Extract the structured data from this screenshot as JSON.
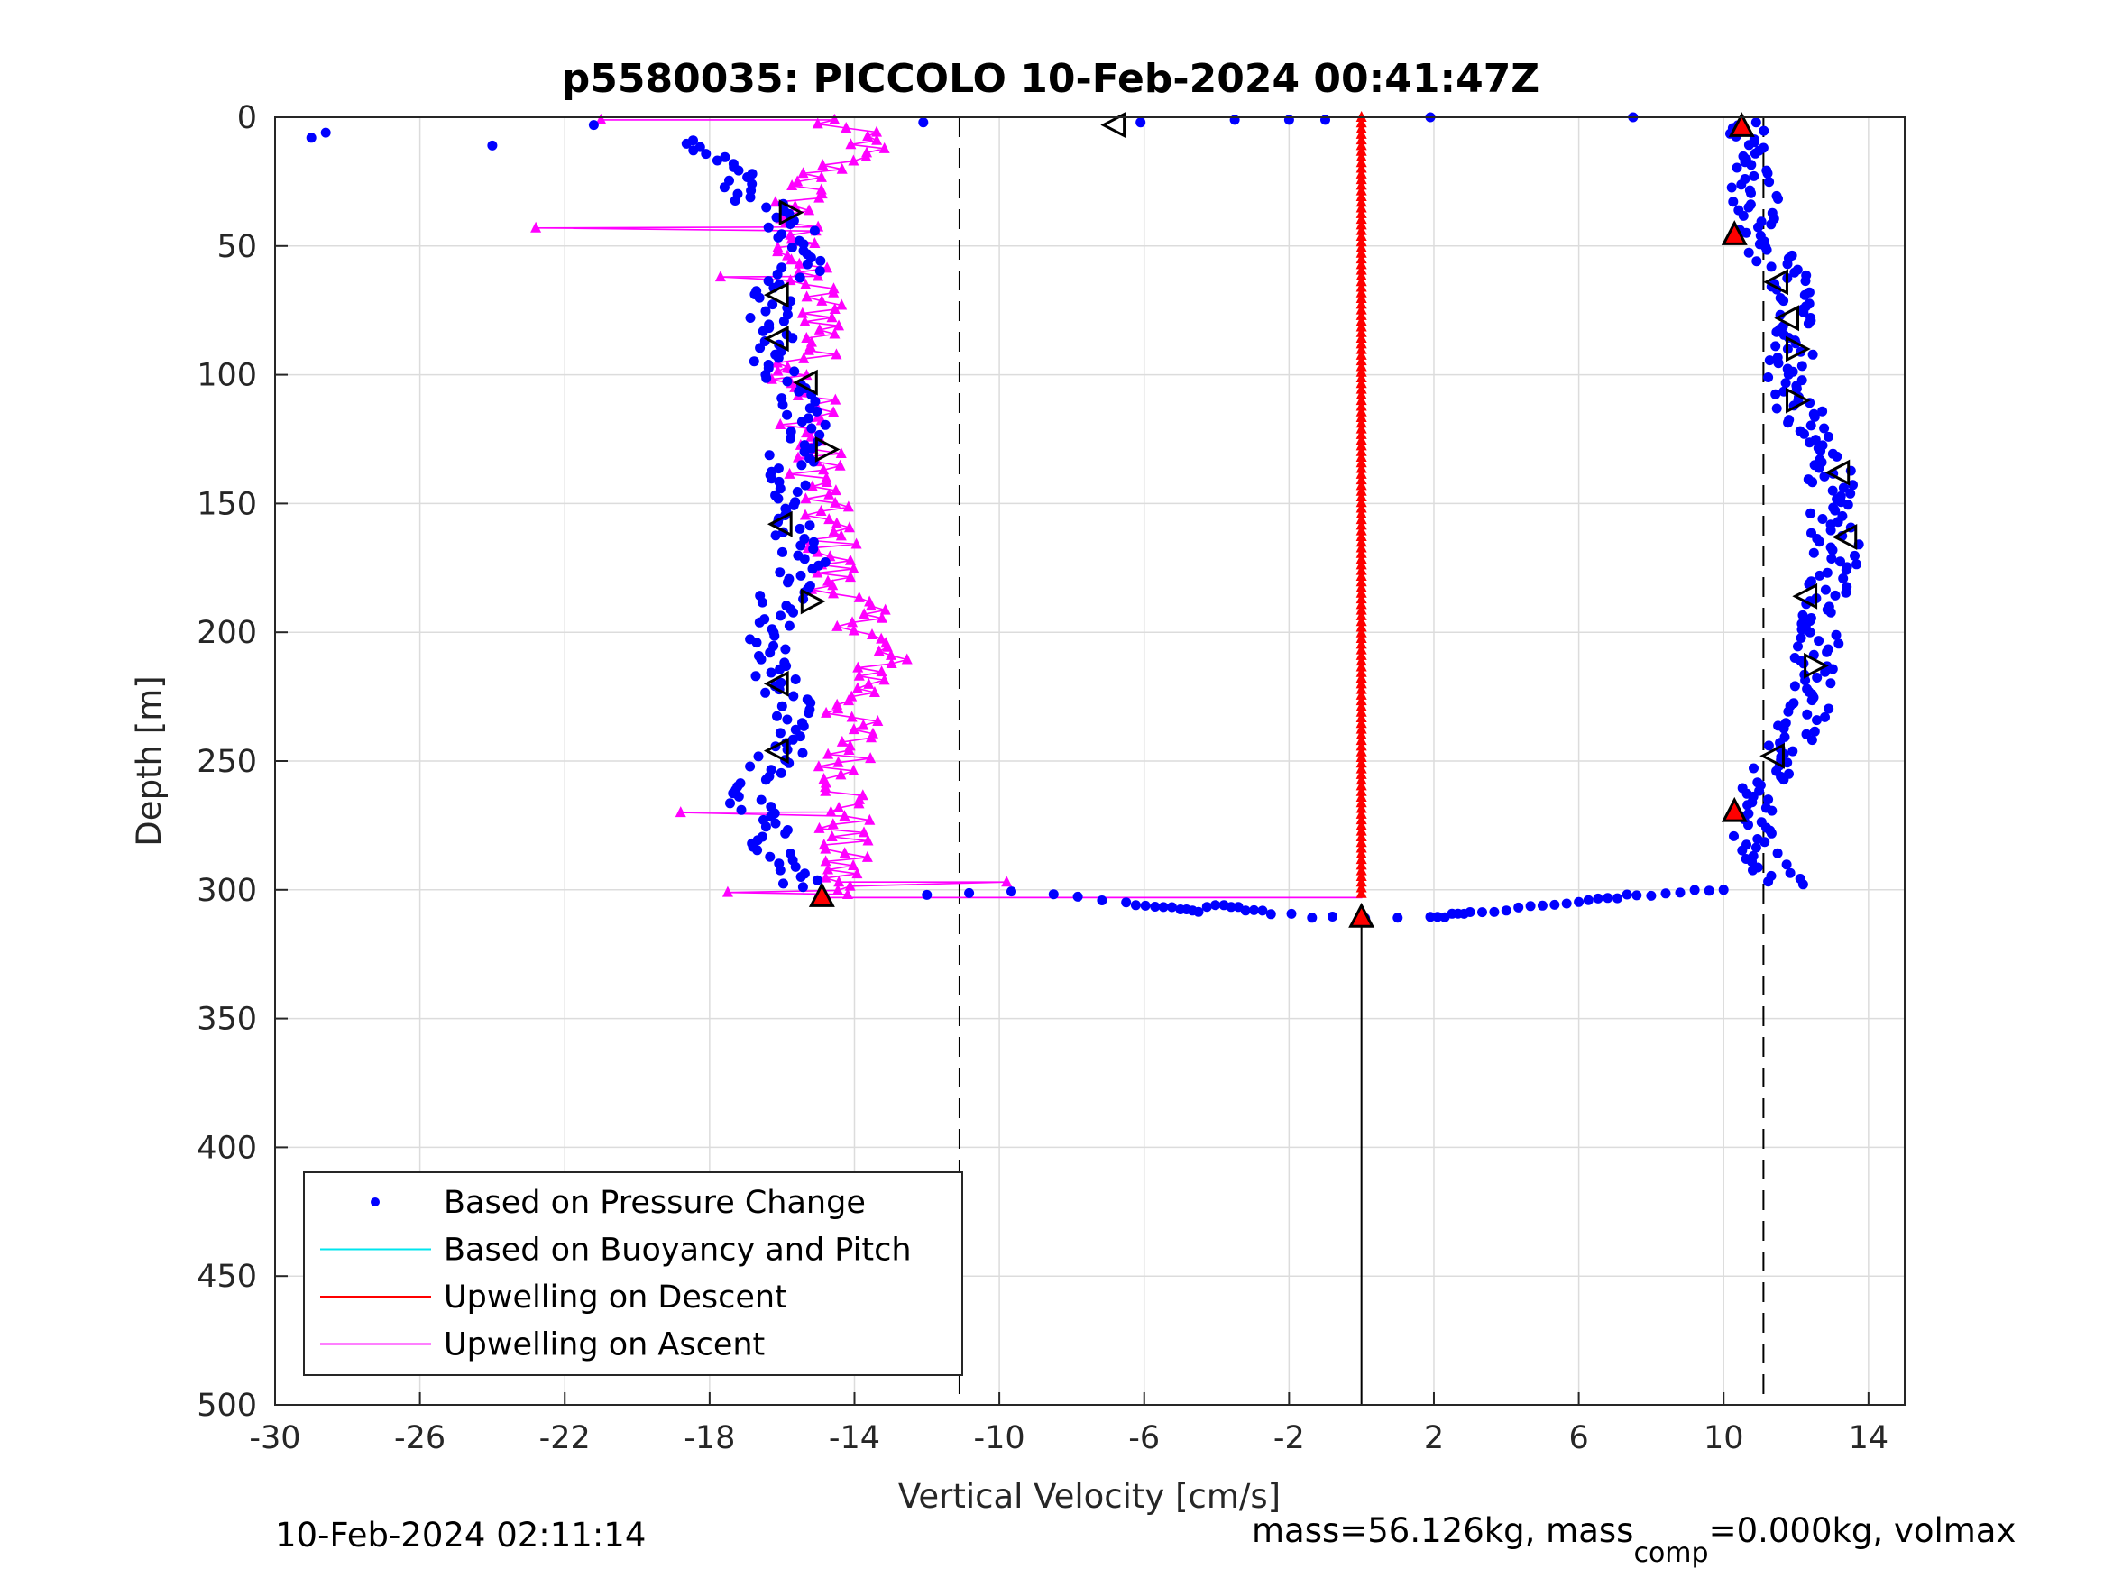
{
  "title": "p5580035: PICCOLO 10-Feb-2024 00:41:47Z",
  "footer": {
    "timestamp": "10-Feb-2024 02:11:14",
    "mass_text": "mass=56.126kg, mass",
    "mass_sub": "comp",
    "mass_tail": "=0.000kg, volmax"
  },
  "colors": {
    "pressure": "#0000ff",
    "buoyancy": "#00e5ee",
    "upwell_descent": "#ff0000",
    "upwell_ascent": "#ff00ff"
  },
  "chart_data": {
    "type": "scatter",
    "xlabel": "Vertical Velocity [cm/s]",
    "ylabel": "Depth [m]",
    "xlim": [
      -30,
      15
    ],
    "ylim": [
      0,
      500
    ],
    "y_reversed": true,
    "grid": true,
    "xticks": [
      -30,
      -26,
      -22,
      -18,
      -14,
      -10,
      -6,
      -2,
      2,
      6,
      10,
      14
    ],
    "yticks": [
      0,
      50,
      100,
      150,
      200,
      250,
      300,
      350,
      400,
      450,
      500
    ],
    "reference_lines": [
      -11.1,
      11.1
    ],
    "legend_position": "bottom-left",
    "legend": [
      {
        "name": "Based on Pressure Change",
        "key": "pressure",
        "style": "dot"
      },
      {
        "name": "Based on Buoyancy and Pitch",
        "key": "buoyancy",
        "style": "line"
      },
      {
        "name": "Upwelling on Descent",
        "key": "upwell_descent",
        "style": "line"
      },
      {
        "name": "Upwelling on Ascent",
        "key": "upwell_ascent",
        "style": "line"
      }
    ],
    "descent_pressure_profile": [
      [
        0,
        10.6
      ],
      [
        10,
        10.9
      ],
      [
        20,
        10.6
      ],
      [
        30,
        10.9
      ],
      [
        40,
        10.8
      ],
      [
        45,
        10.4
      ],
      [
        55,
        11.5
      ],
      [
        65,
        11.8
      ],
      [
        80,
        12.0
      ],
      [
        90,
        12.0
      ],
      [
        100,
        11.7
      ],
      [
        110,
        12.0
      ],
      [
        125,
        12.3
      ],
      [
        135,
        13.1
      ],
      [
        150,
        12.8
      ],
      [
        165,
        13.1
      ],
      [
        180,
        13.0
      ],
      [
        195,
        12.7
      ],
      [
        210,
        12.6
      ],
      [
        225,
        12.6
      ],
      [
        240,
        11.9
      ],
      [
        250,
        11.6
      ],
      [
        262,
        10.9
      ],
      [
        275,
        10.6
      ],
      [
        285,
        11.0
      ],
      [
        295,
        11.6
      ]
    ],
    "ascent_pressure_profile": [
      [
        10,
        -18.3
      ],
      [
        20,
        -17.5
      ],
      [
        30,
        -16.9
      ],
      [
        40,
        -16.0
      ],
      [
        50,
        -15.2
      ],
      [
        60,
        -15.4
      ],
      [
        70,
        -16.4
      ],
      [
        80,
        -16.3
      ],
      [
        90,
        -16.2
      ],
      [
        100,
        -16.1
      ],
      [
        110,
        -15.5
      ],
      [
        120,
        -15.3
      ],
      [
        130,
        -15.7
      ],
      [
        140,
        -15.9
      ],
      [
        150,
        -15.8
      ],
      [
        160,
        -15.8
      ],
      [
        170,
        -15.3
      ],
      [
        180,
        -15.8
      ],
      [
        190,
        -16.1
      ],
      [
        200,
        -16.5
      ],
      [
        210,
        -16.5
      ],
      [
        220,
        -16.2
      ],
      [
        230,
        -15.6
      ],
      [
        240,
        -15.5
      ],
      [
        250,
        -16.2
      ],
      [
        262,
        -17.2
      ],
      [
        272,
        -16.6
      ],
      [
        285,
        -16.2
      ],
      [
        295,
        -15.6
      ]
    ],
    "ascent_upwelling_profile": [
      [
        2,
        -14.8
      ],
      [
        10,
        -13.5
      ],
      [
        20,
        -14.8
      ],
      [
        30,
        -15.5
      ],
      [
        40,
        -15.7
      ],
      [
        50,
        -15.6
      ],
      [
        60,
        -15.5
      ],
      [
        70,
        -15.0
      ],
      [
        80,
        -14.7
      ],
      [
        90,
        -15.1
      ],
      [
        100,
        -15.6
      ],
      [
        110,
        -15.0
      ],
      [
        120,
        -15.3
      ],
      [
        130,
        -15.1
      ],
      [
        140,
        -15.0
      ],
      [
        150,
        -15.0
      ],
      [
        160,
        -14.7
      ],
      [
        170,
        -14.6
      ],
      [
        180,
        -14.6
      ],
      [
        190,
        -14.0
      ],
      [
        200,
        -13.6
      ],
      [
        210,
        -13.2
      ],
      [
        220,
        -13.5
      ],
      [
        230,
        -14.2
      ],
      [
        240,
        -14.0
      ],
      [
        250,
        -14.2
      ],
      [
        260,
        -14.2
      ],
      [
        270,
        -14.2
      ],
      [
        280,
        -14.4
      ],
      [
        290,
        -14.4
      ],
      [
        300,
        -14.5
      ]
    ],
    "ascent_upwelling_spikes": [
      [
        1,
        -21
      ],
      [
        43,
        -22.8
      ],
      [
        62,
        -17.7
      ],
      [
        270,
        -18.8
      ],
      [
        297,
        -9.8
      ],
      [
        301,
        -17.5
      ]
    ],
    "surface_points": [
      [
        8,
        -29
      ],
      [
        6,
        -28.6
      ],
      [
        11,
        -24
      ],
      [
        3,
        -21.2
      ],
      [
        2,
        -12.1
      ],
      [
        2,
        -6.1
      ],
      [
        1,
        -3.5
      ],
      [
        1,
        -2
      ],
      [
        1,
        -1
      ],
      [
        0,
        1.9
      ],
      [
        0,
        7.5
      ]
    ],
    "bottom_points": [
      [
        302,
        -12
      ],
      [
        301,
        -8.5
      ],
      [
        305,
        -6.5
      ],
      [
        306,
        -5.7
      ],
      [
        307,
        -5
      ],
      [
        308,
        -4.5
      ],
      [
        306,
        -3.8
      ],
      [
        308,
        -3.2
      ],
      [
        309,
        -2.5
      ],
      [
        311,
        -0.8
      ],
      [
        311,
        1.9
      ],
      [
        310,
        2.5
      ],
      [
        309,
        3
      ],
      [
        308,
        4
      ],
      [
        306,
        5
      ],
      [
        305,
        6
      ],
      [
        303,
        6.8
      ],
      [
        302,
        7.6
      ],
      [
        301,
        8.8
      ],
      [
        300,
        10
      ]
    ],
    "upwelling_descent": {
      "x": 0,
      "y_from": 0,
      "y_to": 303
    },
    "upwelling_descent_line": [
      [
        0,
        -21
      ],
      [
        0,
        0
      ],
      [
        303,
        0
      ],
      [
        303,
        -15
      ]
    ],
    "descent_markers": {
      "filled_up": [
        [
          4,
          10.5
        ],
        [
          46,
          10.3
        ],
        [
          270,
          10.3
        ],
        [
          303,
          -14.9
        ],
        [
          311,
          0
        ]
      ],
      "open_right": [
        [
          37,
          -15.8
        ],
        [
          129,
          -14.8
        ],
        [
          188,
          -15.2
        ],
        [
          213,
          12.5
        ],
        [
          110,
          12
        ],
        [
          90,
          12
        ]
      ],
      "open_left": [
        [
          3,
          -6.8
        ],
        [
          69,
          -16.1
        ],
        [
          86,
          -16.1
        ],
        [
          103,
          -15.3
        ],
        [
          158,
          -16
        ],
        [
          220,
          -16.1
        ],
        [
          246,
          -16.1
        ],
        [
          64,
          11.5
        ],
        [
          78,
          11.8
        ],
        [
          138,
          13.2
        ],
        [
          163,
          13.4
        ],
        [
          186,
          12.3
        ],
        [
          248,
          11.4
        ]
      ]
    },
    "below_line": {
      "x": 0,
      "y_from": 311,
      "y_to": 500
    }
  }
}
